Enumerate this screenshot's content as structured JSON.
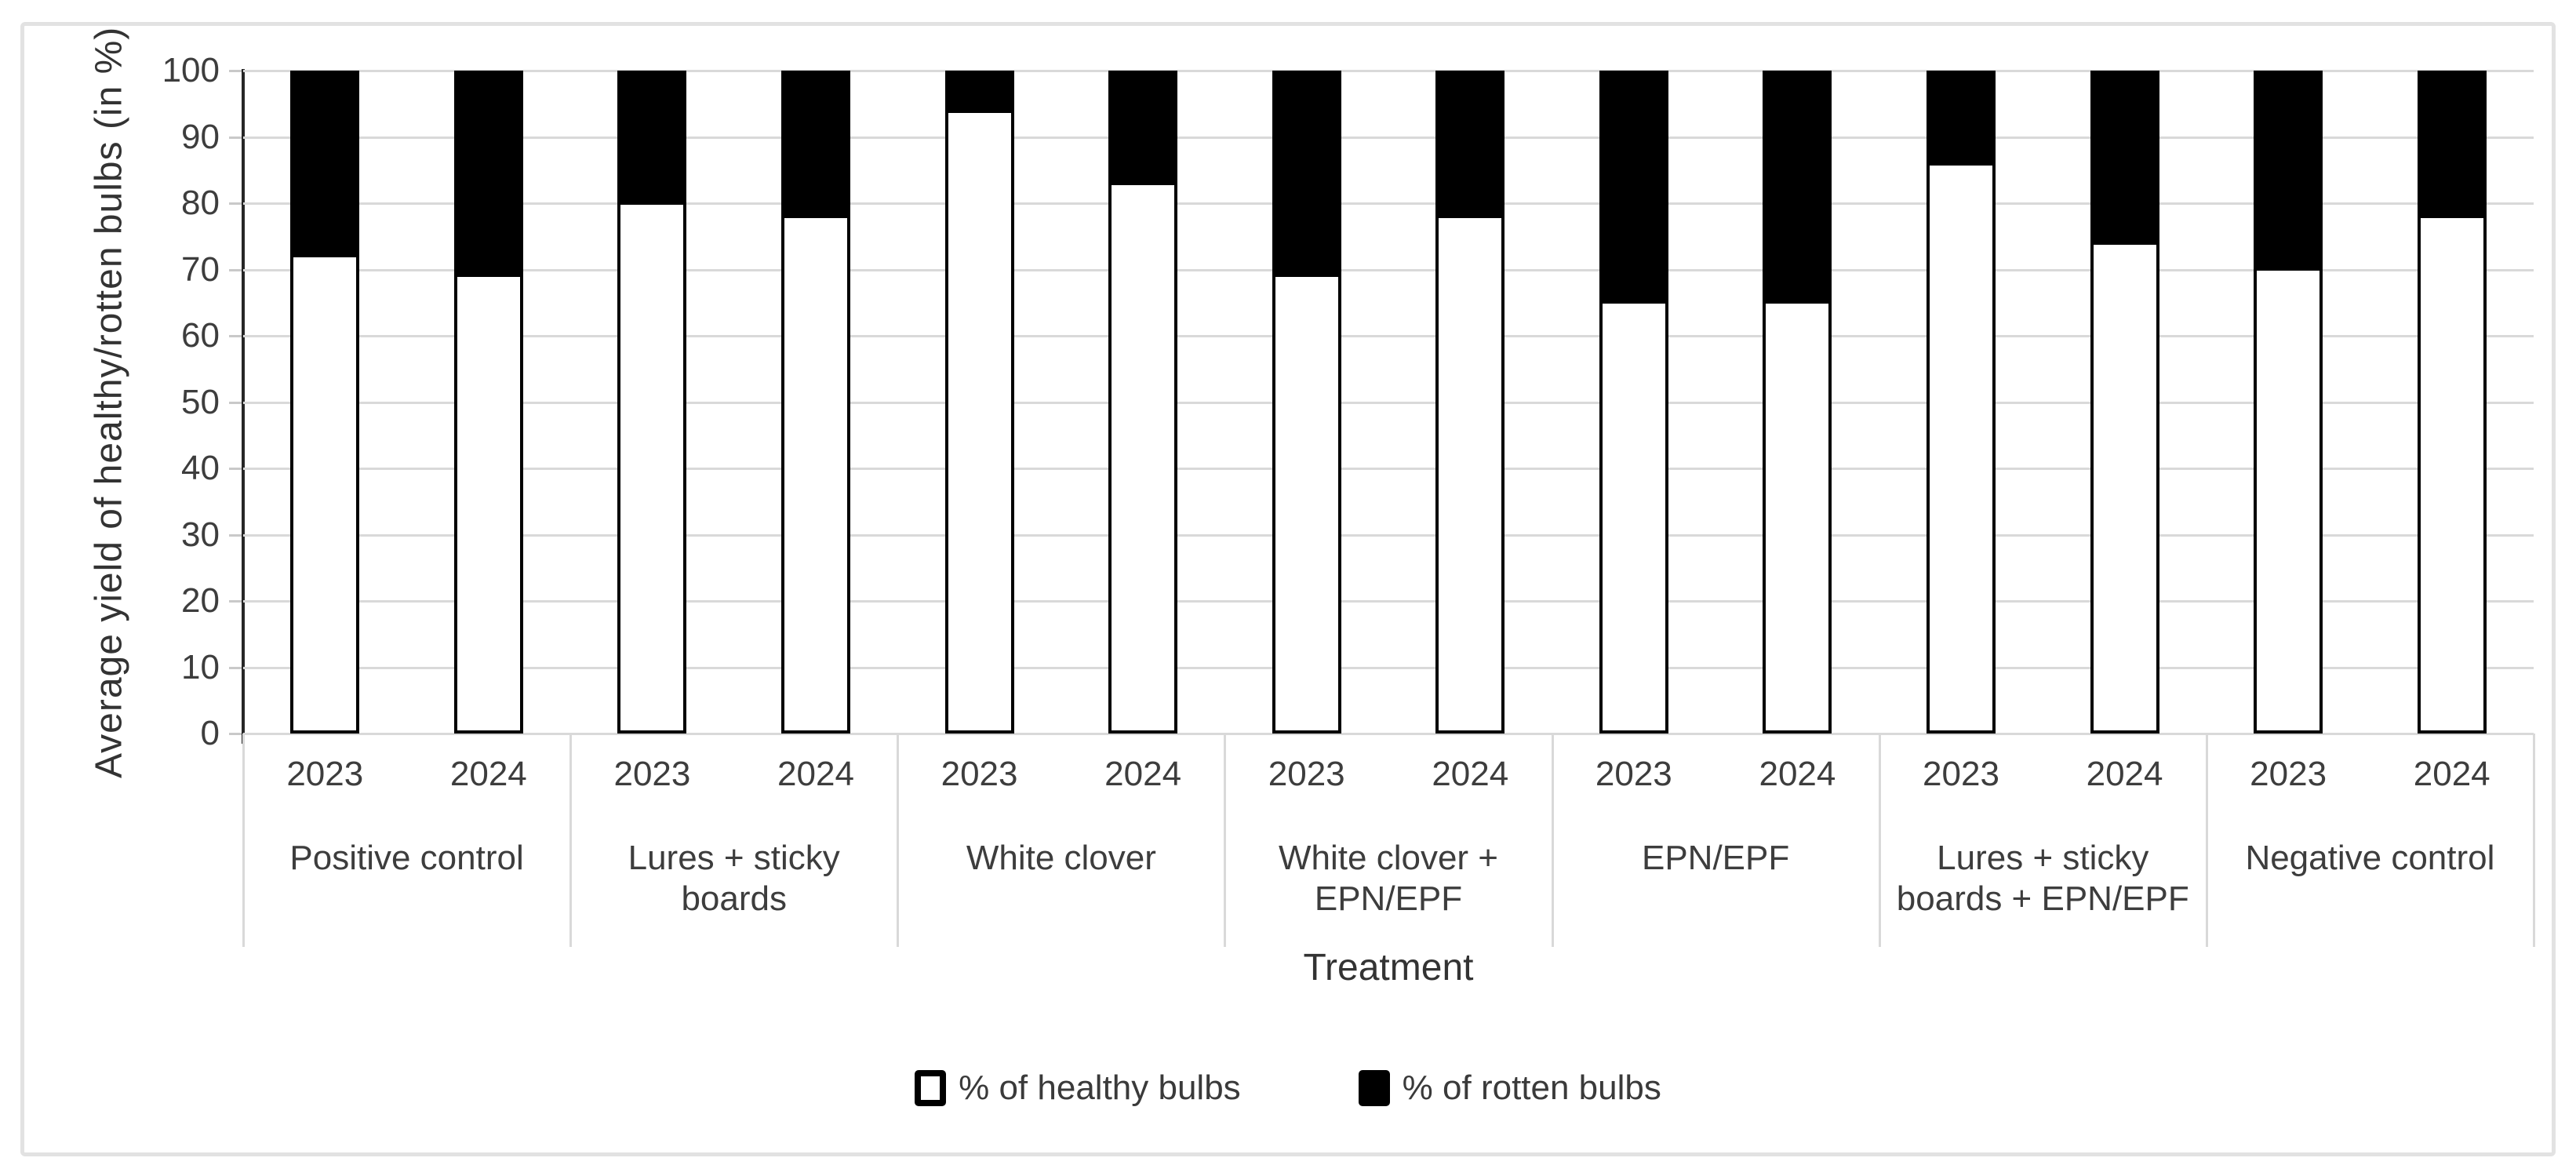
{
  "chart_data": {
    "type": "bar",
    "stacked": true,
    "title": "",
    "xlabel": "Treatment",
    "ylabel": "Average yield of healthy/rotten bulbs (in %)",
    "ylim": [
      0,
      100
    ],
    "yticks": [
      0,
      10,
      20,
      30,
      40,
      50,
      60,
      70,
      80,
      90,
      100
    ],
    "grid": "horizontal",
    "legend_position": "bottom",
    "series": [
      {
        "name": "% of healthy bulbs",
        "fill": "#ffffff",
        "values": [
          72,
          69,
          80,
          78,
          94,
          83,
          69,
          78,
          65,
          65,
          86,
          74,
          70,
          78
        ]
      },
      {
        "name": "% of rotten bulbs",
        "fill": "#000000",
        "values": [
          28,
          31,
          20,
          22,
          6,
          17,
          31,
          22,
          35,
          35,
          14,
          26,
          30,
          22
        ]
      }
    ],
    "groups": [
      {
        "label": "Positive control",
        "label_lines": [
          "Positive control"
        ],
        "bars": [
          {
            "year": "2023",
            "healthy": 72,
            "rotten": 28
          },
          {
            "year": "2024",
            "healthy": 69,
            "rotten": 31
          }
        ]
      },
      {
        "label": "Lures + sticky boards",
        "label_lines": [
          "Lures + sticky",
          "boards"
        ],
        "bars": [
          {
            "year": "2023",
            "healthy": 80,
            "rotten": 20
          },
          {
            "year": "2024",
            "healthy": 78,
            "rotten": 22
          }
        ]
      },
      {
        "label": "White clover",
        "label_lines": [
          "White clover"
        ],
        "bars": [
          {
            "year": "2023",
            "healthy": 94,
            "rotten": 6
          },
          {
            "year": "2024",
            "healthy": 83,
            "rotten": 17
          }
        ]
      },
      {
        "label": "White clover + EPN/EPF",
        "label_lines": [
          "White clover +",
          "EPN/EPF"
        ],
        "bars": [
          {
            "year": "2023",
            "healthy": 69,
            "rotten": 31
          },
          {
            "year": "2024",
            "healthy": 78,
            "rotten": 22
          }
        ]
      },
      {
        "label": "EPN/EPF",
        "label_lines": [
          "EPN/EPF"
        ],
        "bars": [
          {
            "year": "2023",
            "healthy": 65,
            "rotten": 35
          },
          {
            "year": "2024",
            "healthy": 65,
            "rotten": 35
          }
        ]
      },
      {
        "label": "Lures + sticky boards + EPN/EPF",
        "label_lines": [
          "Lures + sticky",
          "boards + EPN/EPF"
        ],
        "bars": [
          {
            "year": "2023",
            "healthy": 86,
            "rotten": 14
          },
          {
            "year": "2024",
            "healthy": 74,
            "rotten": 26
          }
        ]
      },
      {
        "label": "Negative control",
        "label_lines": [
          "Negative control"
        ],
        "bars": [
          {
            "year": "2023",
            "healthy": 70,
            "rotten": 30
          },
          {
            "year": "2024",
            "healthy": 78,
            "rotten": 22
          }
        ]
      }
    ],
    "legend": [
      {
        "label": "% of healthy bulbs",
        "fill": "#ffffff"
      },
      {
        "label": "% of rotten bulbs",
        "fill": "#000000"
      }
    ]
  },
  "colors": {
    "healthy_fill": "#ffffff",
    "rotten_fill": "#000000",
    "bar_border": "#000000",
    "gridline": "#d9d9d9",
    "axis_line": "#262626",
    "text": "#3d3d3d",
    "frame_border": "#e2e2e2"
  }
}
